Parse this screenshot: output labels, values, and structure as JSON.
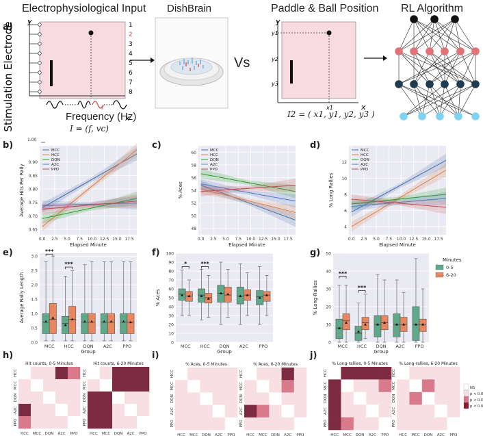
{
  "panel_labels": [
    "a)",
    "b)",
    "c)",
    "d)",
    "e)",
    "f)",
    "g)",
    "h)",
    "i)",
    "j)"
  ],
  "panel_a": {
    "titles": {
      "input": "Electrophysiological Input",
      "dish": "DishBrain",
      "paddle": "Paddle & Ball Position",
      "rl": "RL Algorithm"
    },
    "vs": "Vs",
    "stim_label": "Stimulation Electrode",
    "freq_label": "Frequency (Hz)",
    "electrode_numbers": [
      "1",
      "2",
      "3",
      "4",
      "5",
      "6",
      "7",
      "8"
    ],
    "eq1": "I = (f, vc)",
    "eq2": "I2 = ( x1, y1, y2, y3 )",
    "axis_y": "y",
    "axis_x": "x",
    "ylabels": [
      "y1",
      "y2",
      "y3"
    ],
    "xlabel": "x1",
    "f_symbol": "f"
  },
  "colors": {
    "MCC": "#4c72b0",
    "HCC": "#dd8452",
    "DQN": "#2ca02c",
    "A2C": "#5a7ec4",
    "PPO": "#c44e52",
    "box_green": "#5fa98a",
    "box_orange": "#e8875f",
    "pink_bg": "#f7dbe0"
  },
  "legend_line": [
    "MCC",
    "HCC",
    "DQN",
    "A2C",
    "PPO"
  ],
  "legend_box": {
    "title": "Minutes",
    "items": [
      "0-5",
      "6-20"
    ]
  },
  "legend_sig": [
    "NS",
    "p < 0.05",
    "p < 0.01",
    "p < 0.001"
  ],
  "line_xticks": [
    "0.0",
    "2.5",
    "5.0",
    "7.5",
    "10.0",
    "12.5",
    "15.0",
    "17.5"
  ],
  "line_xlabel": "Elapsed Minute",
  "box_categories": [
    "MCC",
    "HCC",
    "DQN",
    "A2C",
    "PPO"
  ],
  "box_group_label": "Group",
  "heat_labels": [
    "HCC",
    "MCC",
    "DQN",
    "A2C",
    "PPO"
  ],
  "sig_stars": {
    "e1": "***",
    "e2": "***",
    "f1": "*",
    "f2": "***",
    "g1": "***",
    "g2": "***"
  },
  "stray_tick": "1.00",
  "chart_data": [
    {
      "id": "b",
      "type": "line",
      "ylabel": "Average Hits Per Rally",
      "xlabel": "Elapsed Minute",
      "yticks": [
        "0.65",
        "0.70",
        "0.75",
        "0.80",
        "0.85",
        "0.90"
      ],
      "ylim": [
        0.63,
        0.96
      ],
      "xlim": [
        -0.5,
        19
      ],
      "series": [
        {
          "name": "MCC",
          "x": [
            0,
            19
          ],
          "y": [
            0.73,
            0.93
          ]
        },
        {
          "name": "HCC",
          "x": [
            0,
            19
          ],
          "y": [
            0.66,
            0.945
          ]
        },
        {
          "name": "DQN",
          "x": [
            0,
            19
          ],
          "y": [
            0.69,
            0.765
          ]
        },
        {
          "name": "A2C",
          "x": [
            0,
            19
          ],
          "y": [
            0.738,
            0.748
          ]
        },
        {
          "name": "PPO",
          "x": [
            0,
            19
          ],
          "y": [
            0.725,
            0.755
          ]
        }
      ]
    },
    {
      "id": "c",
      "type": "line",
      "ylabel": "% Aces",
      "xlabel": "Elapsed Minute",
      "yticks": [
        "48",
        "50",
        "52",
        "54",
        "56",
        "58",
        "60"
      ],
      "ylim": [
        47,
        61
      ],
      "xlim": [
        -0.5,
        19
      ],
      "series": [
        {
          "name": "MCC",
          "x": [
            0,
            19
          ],
          "y": [
            54.8,
            49.3
          ]
        },
        {
          "name": "HCC",
          "x": [
            0,
            19
          ],
          "y": [
            54.2,
            50.5
          ]
        },
        {
          "name": "DQN",
          "x": [
            0,
            19
          ],
          "y": [
            56.6,
            53.8
          ]
        },
        {
          "name": "A2C",
          "x": [
            0,
            19
          ],
          "y": [
            55.0,
            52.3
          ]
        },
        {
          "name": "PPO",
          "x": [
            0,
            19
          ],
          "y": [
            53.8,
            54.8
          ]
        }
      ]
    },
    {
      "id": "d",
      "type": "line",
      "ylabel": "% Long Rallies",
      "xlabel": "Elapsed Minute",
      "yticks": [
        "4",
        "6",
        "8",
        "10",
        "12"
      ],
      "ylim": [
        3,
        14
      ],
      "xlim": [
        -0.5,
        19
      ],
      "series": [
        {
          "name": "MCC",
          "x": [
            0,
            19
          ],
          "y": [
            5.8,
            12.2
          ]
        },
        {
          "name": "HCC",
          "x": [
            0,
            19
          ],
          "y": [
            4.0,
            11.0
          ]
        },
        {
          "name": "DQN",
          "x": [
            0,
            19
          ],
          "y": [
            6.8,
            8.0
          ]
        },
        {
          "name": "A2C",
          "x": [
            0,
            19
          ],
          "y": [
            6.5,
            7.5
          ]
        },
        {
          "name": "PPO",
          "x": [
            0,
            19
          ],
          "y": [
            7.4,
            6.4
          ]
        }
      ]
    },
    {
      "id": "e",
      "type": "box",
      "ylabel": "Average Rally Length",
      "xlabel": "Group",
      "yticks": [
        "0.0",
        "0.5",
        "1.0",
        "1.5",
        "2.0",
        "2.5",
        "3.0"
      ],
      "ylim": [
        0,
        3.1
      ],
      "series": [
        {
          "name": "0-5",
          "boxes": [
            [
              0.05,
              0.3,
              0.7,
              1.0,
              2.8,
              0.72
            ],
            [
              0.05,
              0.3,
              0.65,
              0.9,
              2.3,
              0.6
            ],
            [
              0.05,
              0.3,
              0.7,
              1.0,
              2.7,
              0.72
            ],
            [
              0.05,
              0.3,
              0.7,
              1.0,
              2.8,
              0.72
            ],
            [
              0.05,
              0.3,
              0.7,
              1.0,
              2.8,
              0.72
            ]
          ]
        },
        {
          "name": "6-20",
          "boxes": [
            [
              0.05,
              0.3,
              0.8,
              1.35,
              3.0,
              0.85
            ],
            [
              0.05,
              0.3,
              0.8,
              1.25,
              2.5,
              0.8
            ],
            [
              0.05,
              0.3,
              0.7,
              1.0,
              2.8,
              0.72
            ],
            [
              0.05,
              0.3,
              0.7,
              1.0,
              2.8,
              0.72
            ],
            [
              0.05,
              0.3,
              0.7,
              1.0,
              2.8,
              0.7
            ]
          ]
        }
      ]
    },
    {
      "id": "f",
      "type": "box",
      "ylabel": "% Aces",
      "xlabel": "Group",
      "yticks": [
        "0",
        "10",
        "20",
        "30",
        "40",
        "50",
        "60",
        "70",
        "80",
        "90",
        "100"
      ],
      "ylim": [
        0,
        100
      ],
      "series": [
        {
          "name": "0-5",
          "boxes": [
            [
              30,
              47,
              54,
              60,
              81,
              53
            ],
            [
              25,
              45,
              53,
              60,
              82,
              52
            ],
            [
              20,
              45,
              55,
              64,
              90,
              55
            ],
            [
              20,
              43,
              52,
              62,
              88,
              52
            ],
            [
              20,
              42,
              51,
              58,
              85,
              50
            ]
          ]
        },
        {
          "name": "6-20",
          "boxes": [
            [
              30,
              46,
              52,
              57,
              70,
              52
            ],
            [
              28,
              44,
              50,
              55,
              75,
              49
            ],
            [
              28,
              45,
              53,
              62,
              82,
              54
            ],
            [
              30,
              47,
              53,
              59,
              78,
              53
            ],
            [
              30,
              46,
              53,
              57,
              75,
              53
            ]
          ]
        }
      ]
    },
    {
      "id": "g",
      "type": "box",
      "ylabel": "% Long-Rallies",
      "xlabel": "Group",
      "yticks": [
        "0",
        "10",
        "20",
        "30",
        "40",
        "50"
      ],
      "ylim": [
        0,
        50
      ],
      "series": [
        {
          "name": "0-5",
          "boxes": [
            [
              0,
              2,
              8,
              13,
              32,
              8
            ],
            [
              0,
              1,
              5,
              9,
              22,
              6
            ],
            [
              0,
              3,
              10,
              15,
              38,
              10
            ],
            [
              0,
              3,
              10,
              16,
              35,
              10
            ],
            [
              0,
              1,
              10,
              20,
              47,
              10
            ]
          ]
        },
        {
          "name": "6-20",
          "boxes": [
            [
              0,
              7,
              12,
              16,
              32,
              11
            ],
            [
              2,
              7,
              11,
              14,
              27,
              10
            ],
            [
              0,
              7,
              11,
              15,
              35,
              11
            ],
            [
              0,
              6,
              10,
              14,
              28,
              10
            ],
            [
              0,
              6,
              10,
              13,
              30,
              10
            ]
          ]
        }
      ]
    },
    {
      "id": "h",
      "type": "heatmap",
      "titles": [
        "Hit counts, 0-5 Minutes",
        "Hit counts, 6-20 Minutes"
      ],
      "labels": [
        "HCC",
        "MCC",
        "DQN",
        "A2C",
        "PPO"
      ],
      "levels": [
        [
          [
            0,
            1,
            1,
            3,
            2
          ],
          [
            1,
            0,
            1,
            1,
            1
          ],
          [
            1,
            1,
            0,
            1,
            1
          ],
          [
            3,
            1,
            1,
            0,
            1
          ],
          [
            2,
            1,
            1,
            1,
            0
          ]
        ],
        [
          [
            0,
            1,
            3,
            3,
            3
          ],
          [
            1,
            0,
            3,
            3,
            3
          ],
          [
            3,
            3,
            0,
            1,
            1
          ],
          [
            3,
            3,
            1,
            0,
            1
          ],
          [
            3,
            3,
            1,
            1,
            0
          ]
        ]
      ]
    },
    {
      "id": "i",
      "type": "heatmap",
      "titles": [
        "% Aces, 0-5 Minutes",
        "% Aces, 6-20 Minutes"
      ],
      "labels": [
        "HCC",
        "MCC",
        "DQN",
        "A2C",
        "PPO"
      ],
      "levels": [
        [
          [
            0,
            1,
            1,
            1,
            1
          ],
          [
            1,
            0,
            1,
            1,
            1
          ],
          [
            1,
            1,
            0,
            1,
            1
          ],
          [
            1,
            1,
            1,
            0,
            1
          ],
          [
            1,
            1,
            1,
            1,
            0
          ]
        ],
        [
          [
            0,
            1,
            1,
            3,
            1
          ],
          [
            1,
            0,
            1,
            2,
            1
          ],
          [
            1,
            1,
            0,
            1,
            1
          ],
          [
            3,
            2,
            1,
            0,
            1
          ],
          [
            1,
            1,
            1,
            1,
            0
          ]
        ]
      ]
    },
    {
      "id": "j",
      "type": "heatmap",
      "titles": [
        "% Long-rallies, 0-5 Minutes",
        "% Long-rallies, 6-20 Minutes"
      ],
      "labels": [
        "HCC",
        "MCC",
        "DQN",
        "A2C",
        "PPO"
      ],
      "levels": [
        [
          [
            0,
            3,
            3,
            3,
            3
          ],
          [
            3,
            0,
            1,
            1,
            2
          ],
          [
            3,
            1,
            0,
            1,
            1
          ],
          [
            3,
            1,
            1,
            0,
            1
          ],
          [
            3,
            2,
            1,
            1,
            0
          ]
        ],
        [
          [
            0,
            1,
            1,
            1,
            1
          ],
          [
            1,
            0,
            2,
            1,
            1
          ],
          [
            1,
            2,
            0,
            1,
            1
          ],
          [
            1,
            1,
            1,
            0,
            1
          ],
          [
            1,
            1,
            1,
            1,
            0
          ]
        ]
      ]
    }
  ]
}
